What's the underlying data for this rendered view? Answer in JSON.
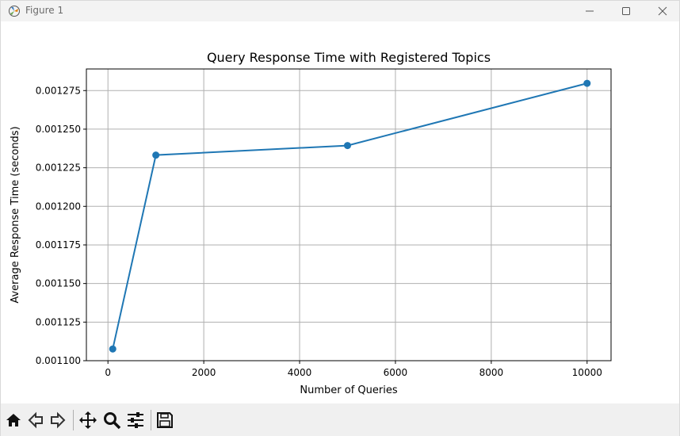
{
  "window": {
    "title": "Figure 1",
    "app_icon": "matplotlib-icon",
    "controls": [
      "minimize-icon",
      "maximize-icon",
      "close-icon"
    ]
  },
  "toolbar": {
    "icons": [
      "home-icon",
      "back-arrow-icon",
      "forward-arrow-icon",
      "pan-move-icon",
      "zoom-magnifier-icon",
      "configure-subplots-icon",
      "save-disk-icon"
    ]
  },
  "chart_data": {
    "type": "line",
    "title": "Query Response Time with Registered Topics",
    "xlabel": "Number of Queries",
    "ylabel": "Average Response Time (seconds)",
    "x": [
      100,
      1000,
      5000,
      10000
    ],
    "series": [
      {
        "values": [
          0.0011076,
          0.0012332,
          0.0012394,
          0.0012797
        ],
        "color": "#1f77b4"
      }
    ],
    "xlim": [
      -450,
      10500
    ],
    "ylim": [
      0.0011,
      0.001289
    ],
    "xticks": [
      0,
      2000,
      4000,
      6000,
      8000,
      10000
    ],
    "xtick_labels": [
      "0",
      "2000",
      "4000",
      "6000",
      "8000",
      "10000"
    ],
    "yticks": [
      0.0011,
      0.001125,
      0.00115,
      0.001175,
      0.0012,
      0.001225,
      0.00125,
      0.001275
    ],
    "ytick_labels": [
      "0.001100",
      "0.001125",
      "0.001150",
      "0.001175",
      "0.001200",
      "0.001225",
      "0.001250",
      "0.001275"
    ],
    "grid": true,
    "marker": "circle"
  }
}
